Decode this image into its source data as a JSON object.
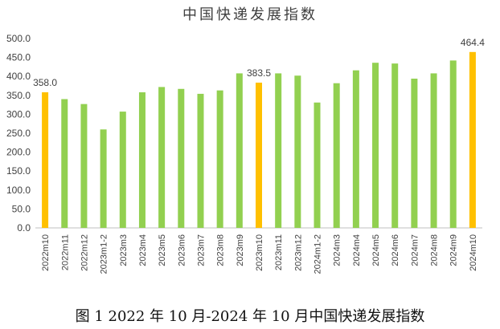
{
  "title": "中国快递发展指数",
  "caption": "图 1 2022 年 10 月-2024 年 10 月中国快递发展指数",
  "colors": {
    "normal": "#92d050",
    "highlight": "#ffc000",
    "axis": "#bfbfbf",
    "text": "#404040"
  },
  "chart_data": {
    "type": "bar",
    "title": "中国快递发展指数",
    "categories": [
      "2022m10",
      "2022m11",
      "2022m12",
      "2023m1-2",
      "2023m3",
      "2023m4",
      "2023m5",
      "2023m6",
      "2023m7",
      "2023m8",
      "2023m9",
      "2023m10",
      "2023m11",
      "2023m12",
      "2024m1-2",
      "2024m3",
      "2024m4",
      "2024m5",
      "2024m6",
      "2024m7",
      "2024m8",
      "2024m9",
      "2024m10"
    ],
    "values": [
      358.0,
      340,
      327,
      260,
      307,
      358,
      372,
      367,
      354,
      363,
      408,
      383.5,
      408,
      402,
      331,
      382,
      416,
      436,
      434,
      394,
      408,
      442,
      464.4
    ],
    "highlighted": [
      "2022m10",
      "2023m10",
      "2024m10"
    ],
    "data_labels": {
      "2022m10": "358.0",
      "2023m10": "383.5",
      "2024m10": "464.4"
    },
    "ylim": [
      0,
      500
    ],
    "yticks": [
      "0.0",
      "50.0",
      "100.0",
      "150.0",
      "200.0",
      "250.0",
      "300.0",
      "350.0",
      "400.0",
      "450.0",
      "500.0"
    ],
    "grid": false,
    "legend": "none"
  }
}
